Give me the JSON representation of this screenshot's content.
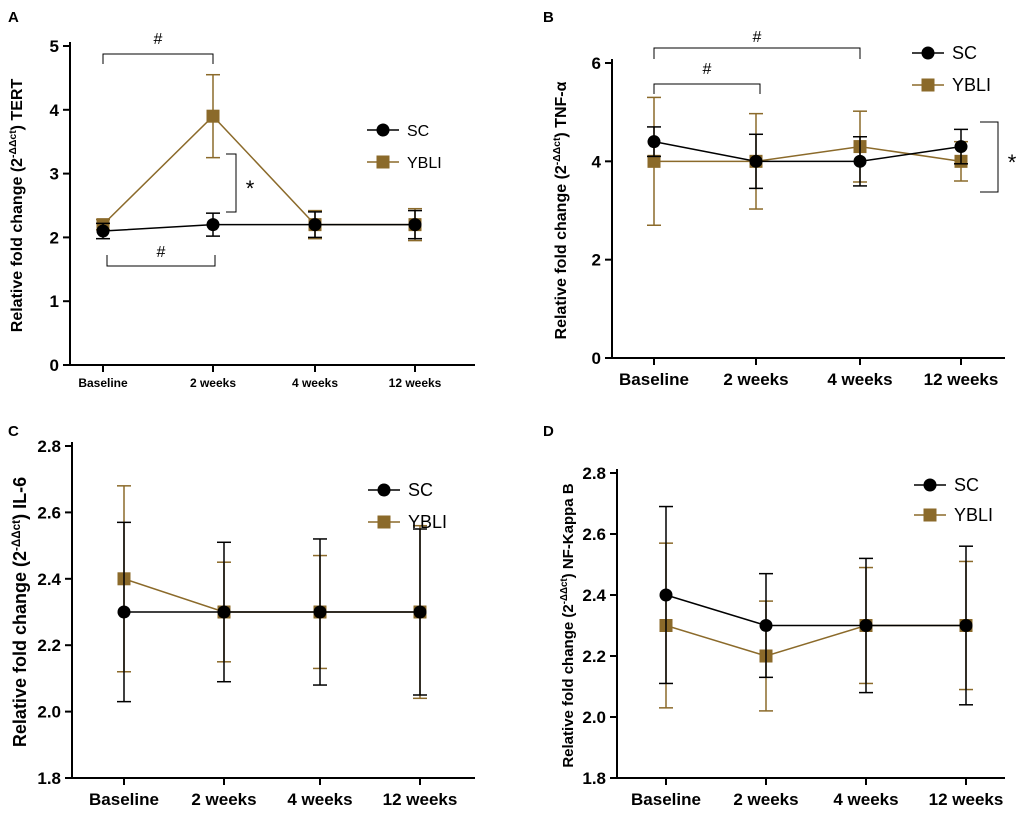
{
  "figure": {
    "type": "multi-panel line chart"
  },
  "colors": {
    "sc": "#000000",
    "ybli": "#8B6A2A",
    "axis": "#000000"
  },
  "chart_data": [
    {
      "panel": "A",
      "type": "line",
      "title": "",
      "ylabel_prefix": "Relative fold change (2",
      "ylabel_sup": "-ΔΔct",
      "ylabel_suffix": ") TERT",
      "xlabel": "",
      "categories": [
        "Baseline",
        "2 weeks",
        "4 weeks",
        "12 weeks"
      ],
      "ylim": [
        0,
        5
      ],
      "yticks": [
        0,
        1,
        2,
        3,
        4,
        5
      ],
      "series": [
        {
          "name": "SC",
          "values": [
            2.1,
            2.2,
            2.2,
            2.2
          ],
          "err_hi": [
            0.12,
            0.18,
            0.2,
            0.22
          ],
          "err_lo": [
            0.12,
            0.18,
            0.2,
            0.22
          ]
        },
        {
          "name": "YBLI",
          "values": [
            2.2,
            3.9,
            2.2,
            2.2
          ],
          "err_hi": [
            0.08,
            0.65,
            0.22,
            0.25
          ],
          "err_lo": [
            0.08,
            0.65,
            0.22,
            0.25
          ]
        }
      ],
      "legend": [
        "SC",
        "YBLI"
      ],
      "annotations": [
        "#",
        "#",
        "*"
      ]
    },
    {
      "panel": "B",
      "type": "line",
      "title": "",
      "ylabel_prefix": "Relative fold change (2",
      "ylabel_sup": "-ΔΔct",
      "ylabel_suffix": ") TNF-α",
      "xlabel": "",
      "categories": [
        "Baseline",
        "2 weeks",
        "4 weeks",
        "12 weeks"
      ],
      "ylim": [
        0,
        6
      ],
      "yticks": [
        0,
        2,
        4,
        6
      ],
      "series": [
        {
          "name": "SC",
          "values": [
            4.4,
            4.0,
            4.0,
            4.3
          ],
          "err_hi": [
            0.3,
            0.55,
            0.5,
            0.35
          ],
          "err_lo": [
            0.3,
            0.55,
            0.5,
            0.35
          ]
        },
        {
          "name": "YBLI",
          "values": [
            4.0,
            4.0,
            4.3,
            4.0
          ],
          "err_hi": [
            1.3,
            0.97,
            0.72,
            0.4
          ],
          "err_lo": [
            1.3,
            0.97,
            0.72,
            0.4
          ]
        }
      ],
      "legend": [
        "SC",
        "YBLI"
      ],
      "annotations": [
        "#",
        "#",
        "*"
      ]
    },
    {
      "panel": "C",
      "type": "line",
      "title": "",
      "ylabel_prefix": "Relative fold change (2",
      "ylabel_sup": "-ΔΔct",
      "ylabel_suffix": ") IL-6",
      "xlabel": "",
      "categories": [
        "Baseline",
        "2 weeks",
        "4 weeks",
        "12 weeks"
      ],
      "ylim": [
        1.8,
        2.8
      ],
      "yticks": [
        1.8,
        2.0,
        2.2,
        2.4,
        2.6,
        2.8
      ],
      "series": [
        {
          "name": "SC",
          "values": [
            2.3,
            2.3,
            2.3,
            2.3
          ],
          "err_hi": [
            0.27,
            0.21,
            0.22,
            0.25
          ],
          "err_lo": [
            0.27,
            0.21,
            0.22,
            0.25
          ]
        },
        {
          "name": "YBLI",
          "values": [
            2.4,
            2.3,
            2.3,
            2.3
          ],
          "err_hi": [
            0.28,
            0.15,
            0.17,
            0.26
          ],
          "err_lo": [
            0.28,
            0.15,
            0.17,
            0.26
          ]
        }
      ],
      "legend": [
        "SC",
        "YBLI"
      ],
      "annotations": []
    },
    {
      "panel": "D",
      "type": "line",
      "title": "",
      "ylabel_prefix": "Relative fold change (2",
      "ylabel_sup": "-ΔΔct",
      "ylabel_suffix": ") NF-Kappa B",
      "xlabel": "",
      "categories": [
        "Baseline",
        "2 weeks",
        "4 weeks",
        "12 weeks"
      ],
      "ylim": [
        1.8,
        2.8
      ],
      "yticks": [
        1.8,
        2.0,
        2.2,
        2.4,
        2.6,
        2.8
      ],
      "series": [
        {
          "name": "SC",
          "values": [
            2.4,
            2.3,
            2.3,
            2.3
          ],
          "err_hi": [
            0.29,
            0.17,
            0.22,
            0.26
          ],
          "err_lo": [
            0.29,
            0.17,
            0.22,
            0.26
          ]
        },
        {
          "name": "YBLI",
          "values": [
            2.3,
            2.2,
            2.3,
            2.3
          ],
          "err_hi": [
            0.27,
            0.18,
            0.19,
            0.21
          ],
          "err_lo": [
            0.27,
            0.18,
            0.19,
            0.21
          ]
        }
      ],
      "legend": [
        "SC",
        "YBLI"
      ],
      "annotations": []
    }
  ]
}
